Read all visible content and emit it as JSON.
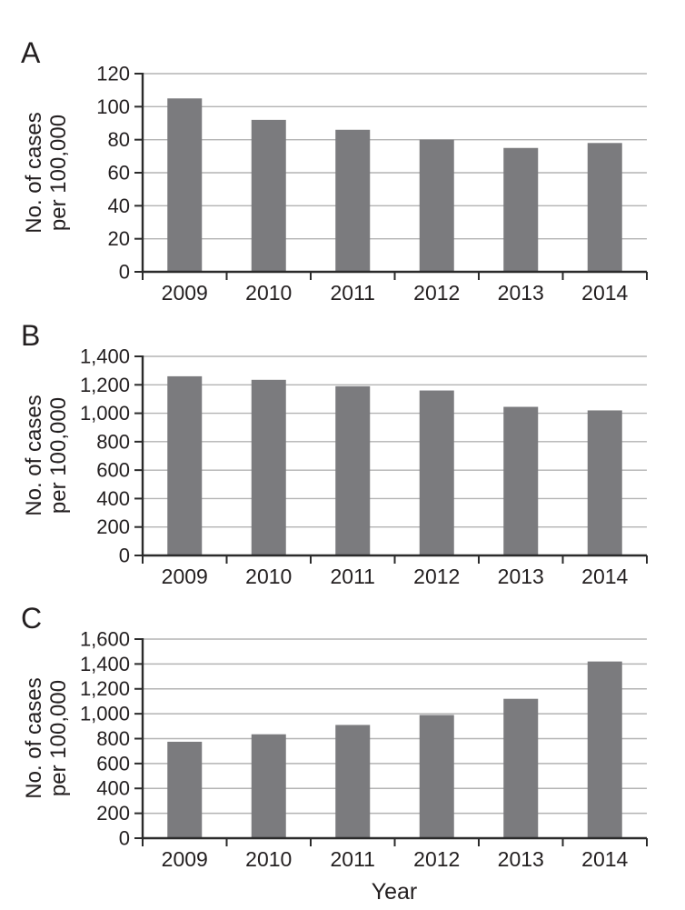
{
  "figure": {
    "x_axis_title": "Year"
  },
  "colors": {
    "background": "#ffffff",
    "bar": "#7b7b7e",
    "gridline": "#b3b3b3",
    "axis": "#2b2b2b",
    "text": "#231f20"
  },
  "chart_data": [
    {
      "type": "bar",
      "panel_label": "A",
      "title": "",
      "ylabel": "No. of cases\nper 100,000",
      "xlabel": "",
      "categories": [
        "2009",
        "2010",
        "2011",
        "2012",
        "2013",
        "2014"
      ],
      "values": [
        105,
        92,
        86,
        80,
        75,
        78
      ],
      "ylim": [
        0,
        120
      ],
      "ystep": 20,
      "ytick_labels": [
        "0",
        "20",
        "40",
        "60",
        "80",
        "100",
        "120"
      ],
      "grid": true,
      "legend": "none"
    },
    {
      "type": "bar",
      "panel_label": "B",
      "title": "",
      "ylabel": "No. of cases\nper 100,000",
      "xlabel": "",
      "categories": [
        "2009",
        "2010",
        "2011",
        "2012",
        "2013",
        "2014"
      ],
      "values": [
        1260,
        1235,
        1190,
        1160,
        1045,
        1020
      ],
      "ylim": [
        0,
        1400
      ],
      "ystep": 200,
      "ytick_labels": [
        "0",
        "200",
        "400",
        "600",
        "800",
        "1,000",
        "1,200",
        "1,400"
      ],
      "grid": true,
      "legend": "none"
    },
    {
      "type": "bar",
      "panel_label": "C",
      "title": "",
      "ylabel": "No. of cases\nper 100,000",
      "xlabel": "Year",
      "categories": [
        "2009",
        "2010",
        "2011",
        "2012",
        "2013",
        "2014"
      ],
      "values": [
        775,
        835,
        910,
        990,
        1120,
        1420
      ],
      "ylim": [
        0,
        1600
      ],
      "ystep": 200,
      "ytick_labels": [
        "0",
        "200",
        "400",
        "600",
        "800",
        "1,000",
        "1,200",
        "1,400",
        "1,600"
      ],
      "grid": true,
      "legend": "none"
    }
  ]
}
